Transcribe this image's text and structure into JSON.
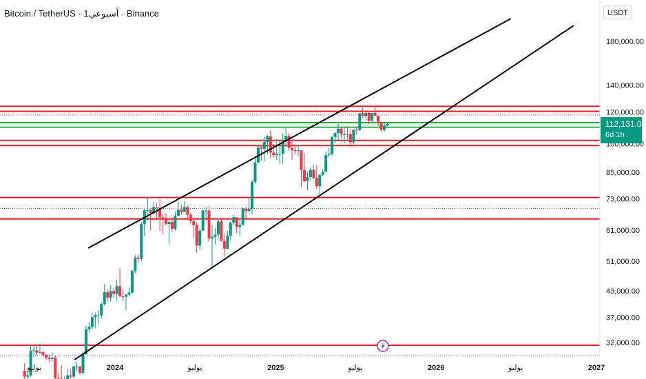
{
  "header": {
    "title": "Bitcoin / TetherUS · 1أسبوعي · Binance",
    "currency": "USDT"
  },
  "price_badge": {
    "price": "112,131.04",
    "countdown": "6d 1h"
  },
  "colors": {
    "up": "#089981",
    "down": "#f23645",
    "channel": "#000000",
    "resistance": "#e0222f",
    "support_zone": "#0b9a2a",
    "marker": "#9c27b0"
  },
  "icons": {
    "event_marker": "lightning-icon"
  },
  "chart_data": {
    "type": "candlestick",
    "scale": "log",
    "y_ticks": [
      {
        "value": 32000,
        "label": "32,000.00"
      },
      {
        "value": 37000,
        "label": "37,000.00"
      },
      {
        "value": 43000,
        "label": "43,000.00"
      },
      {
        "value": 51000,
        "label": "51,000.00"
      },
      {
        "value": 61000,
        "label": "61,000.00"
      },
      {
        "value": 73000,
        "label": "73,000.00"
      },
      {
        "value": 85000,
        "label": "85,000.00"
      },
      {
        "value": 100000,
        "label": "100,000.00"
      },
      {
        "value": 120000,
        "label": "120,000.00"
      },
      {
        "value": 140000,
        "label": "140,000.00"
      },
      {
        "value": 180000,
        "label": "180,000.00"
      }
    ],
    "x_ticks": [
      {
        "date": "2023-07-01",
        "label": "يوليو",
        "bold": false
      },
      {
        "date": "2024-01-01",
        "label": "2024",
        "bold": true
      },
      {
        "date": "2024-07-01",
        "label": "يوليو",
        "bold": false
      },
      {
        "date": "2025-01-01",
        "label": "2025",
        "bold": true
      },
      {
        "date": "2025-07-01",
        "label": "يوليو",
        "bold": false
      },
      {
        "date": "2026-01-01",
        "label": "2026",
        "bold": true
      },
      {
        "date": "2026-07-01",
        "label": "يوليو",
        "bold": false
      },
      {
        "date": "2027-01-01",
        "label": "2027",
        "bold": true
      }
    ],
    "horizontal_levels": [
      {
        "value": 124000,
        "kind": "resistance"
      },
      {
        "value": 120500,
        "kind": "resistance"
      },
      {
        "value": 113000,
        "kind": "support_zone"
      },
      {
        "value": 110000,
        "kind": "support_zone"
      },
      {
        "value": 102000,
        "kind": "resistance"
      },
      {
        "value": 99000,
        "kind": "resistance"
      },
      {
        "value": 73500,
        "kind": "resistance"
      },
      {
        "value": 65000,
        "kind": "resistance"
      },
      {
        "value": 31500,
        "kind": "resistance"
      }
    ],
    "dotted_levels": [
      118000,
      69000,
      29700
    ],
    "channel_lines": [
      {
        "start": {
          "date": "2023-11-01",
          "value": 55000
        },
        "end": {
          "date": "2026-06-20",
          "value": 205000
        }
      },
      {
        "start": {
          "date": "2023-10-01",
          "value": 29000
        },
        "end": {
          "date": "2026-11-10",
          "value": 197000
        }
      }
    ],
    "marker": {
      "date": "2025-08-25"
    },
    "last_price": 112131.04,
    "candles": [
      [
        "2023-06-05",
        27200,
        28400,
        25800,
        26300
      ],
      [
        "2023-06-12",
        26300,
        27000,
        24800,
        26500
      ],
      [
        "2023-06-19",
        26500,
        31400,
        26300,
        30500
      ],
      [
        "2023-06-26",
        30500,
        31300,
        29500,
        30600
      ],
      [
        "2023-07-03",
        30600,
        31500,
        29700,
        30200
      ],
      [
        "2023-07-10",
        30200,
        31800,
        29900,
        30300
      ],
      [
        "2023-07-17",
        30300,
        30400,
        29500,
        29800
      ],
      [
        "2023-07-24",
        29800,
        30000,
        28900,
        29300
      ],
      [
        "2023-07-31",
        29300,
        29900,
        28600,
        29100
      ],
      [
        "2023-08-07",
        29100,
        30200,
        28700,
        29300
      ],
      [
        "2023-08-14",
        29300,
        29700,
        25200,
        26100
      ],
      [
        "2023-08-21",
        26100,
        26800,
        25600,
        26000
      ],
      [
        "2023-08-28",
        26000,
        28100,
        25400,
        25800
      ],
      [
        "2023-09-04",
        25800,
        26400,
        24900,
        25900
      ],
      [
        "2023-09-11",
        25900,
        27500,
        25100,
        26500
      ],
      [
        "2023-09-18",
        26500,
        27500,
        26000,
        26300
      ],
      [
        "2023-09-25",
        26300,
        28000,
        26000,
        27900
      ],
      [
        "2023-10-02",
        27900,
        28600,
        27200,
        27900
      ],
      [
        "2023-10-09",
        27900,
        27900,
        26600,
        26900
      ],
      [
        "2023-10-16",
        26900,
        30400,
        26600,
        29900
      ],
      [
        "2023-10-23",
        29900,
        35200,
        29800,
        34500
      ],
      [
        "2023-10-30",
        34500,
        35900,
        33900,
        35000
      ],
      [
        "2023-11-06",
        35000,
        38000,
        34500,
        37000
      ],
      [
        "2023-11-13",
        37000,
        37900,
        34800,
        37400
      ],
      [
        "2023-11-20",
        37400,
        38400,
        35600,
        37400
      ],
      [
        "2023-11-27",
        37400,
        40200,
        36700,
        39900
      ],
      [
        "2023-12-04",
        39900,
        44700,
        39500,
        42700
      ],
      [
        "2023-12-11",
        42700,
        43400,
        40500,
        41400
      ],
      [
        "2023-12-18",
        41400,
        44400,
        40500,
        43000
      ],
      [
        "2023-12-25",
        43000,
        43800,
        41400,
        42300
      ],
      [
        "2024-01-01",
        42300,
        45900,
        40800,
        44200
      ],
      [
        "2024-01-08",
        44200,
        49000,
        41500,
        41700
      ],
      [
        "2024-01-15",
        41700,
        43500,
        40600,
        41600
      ],
      [
        "2024-01-22",
        41600,
        42200,
        38500,
        42100
      ],
      [
        "2024-01-29",
        42100,
        43900,
        41800,
        42600
      ],
      [
        "2024-02-05",
        42600,
        48600,
        42300,
        48300
      ],
      [
        "2024-02-12",
        48300,
        52800,
        47600,
        52100
      ],
      [
        "2024-02-19",
        52100,
        52900,
        50500,
        51700
      ],
      [
        "2024-02-26",
        51700,
        63900,
        50900,
        63100
      ],
      [
        "2024-03-04",
        63100,
        69000,
        59000,
        68300
      ],
      [
        "2024-03-11",
        68300,
        73800,
        64600,
        68400
      ],
      [
        "2024-03-18",
        68400,
        68900,
        60800,
        67200
      ],
      [
        "2024-03-25",
        67200,
        71800,
        66700,
        69600
      ],
      [
        "2024-04-01",
        69600,
        71300,
        64500,
        69300
      ],
      [
        "2024-04-08",
        69300,
        72800,
        60700,
        65600
      ],
      [
        "2024-04-15",
        65600,
        66800,
        59600,
        64900
      ],
      [
        "2024-04-22",
        64900,
        67200,
        62800,
        63100
      ],
      [
        "2024-04-29",
        63100,
        64700,
        56500,
        63900
      ],
      [
        "2024-05-06",
        63900,
        65500,
        60200,
        61400
      ],
      [
        "2024-05-13",
        61400,
        67700,
        60800,
        66200
      ],
      [
        "2024-05-20",
        66200,
        71900,
        66100,
        68500
      ],
      [
        "2024-05-27",
        68500,
        70600,
        66600,
        67700
      ],
      [
        "2024-06-03",
        67700,
        72000,
        67600,
        69600
      ],
      [
        "2024-06-10",
        69600,
        70200,
        65000,
        66600
      ],
      [
        "2024-06-17",
        66600,
        67200,
        63400,
        64200
      ],
      [
        "2024-06-24",
        64200,
        64500,
        58400,
        62700
      ],
      [
        "2024-07-01",
        62700,
        63800,
        53500,
        55800
      ],
      [
        "2024-07-08",
        55800,
        61300,
        54300,
        60800
      ],
      [
        "2024-07-15",
        60800,
        68400,
        60600,
        68200
      ],
      [
        "2024-07-22",
        68200,
        69400,
        64400,
        68200
      ],
      [
        "2024-07-29",
        68200,
        70000,
        57100,
        58100
      ],
      [
        "2024-08-05",
        58100,
        62700,
        49000,
        58700
      ],
      [
        "2024-08-12",
        58700,
        61800,
        56200,
        59400
      ],
      [
        "2024-08-19",
        59400,
        65000,
        57800,
        64100
      ],
      [
        "2024-08-26",
        64100,
        64900,
        57100,
        57300
      ],
      [
        "2024-09-02",
        57300,
        59800,
        52500,
        54800
      ],
      [
        "2024-09-09",
        54800,
        60700,
        54600,
        59100
      ],
      [
        "2024-09-16",
        59100,
        64100,
        57500,
        63600
      ],
      [
        "2024-09-23",
        63600,
        66500,
        62700,
        65600
      ],
      [
        "2024-09-30",
        65600,
        65600,
        59800,
        62100
      ],
      [
        "2024-10-07",
        62100,
        64500,
        58900,
        62900
      ],
      [
        "2024-10-14",
        62900,
        69400,
        62500,
        69000
      ],
      [
        "2024-10-21",
        69000,
        69500,
        65000,
        68000
      ],
      [
        "2024-10-28",
        68000,
        73600,
        67500,
        68800
      ],
      [
        "2024-11-04",
        68800,
        81500,
        66800,
        80400
      ],
      [
        "2024-11-11",
        80400,
        93400,
        79500,
        89900
      ],
      [
        "2024-11-18",
        89900,
        99600,
        89400,
        97900
      ],
      [
        "2024-11-25",
        97900,
        98700,
        90800,
        97200
      ],
      [
        "2024-12-02",
        97200,
        104000,
        90500,
        101100
      ],
      [
        "2024-12-09",
        101100,
        105000,
        94100,
        104400
      ],
      [
        "2024-12-16",
        104400,
        108300,
        92200,
        95100
      ],
      [
        "2024-12-23",
        95100,
        99900,
        92500,
        93700
      ],
      [
        "2024-12-30",
        93700,
        102700,
        91200,
        94500
      ],
      [
        "2025-01-06",
        94500,
        102300,
        89300,
        94500
      ],
      [
        "2025-01-13",
        94500,
        106300,
        89300,
        101300
      ],
      [
        "2025-01-20",
        101300,
        109600,
        99500,
        104700
      ],
      [
        "2025-01-27",
        104700,
        106500,
        96100,
        97700
      ],
      [
        "2025-02-03",
        97700,
        102500,
        91200,
        96400
      ],
      [
        "2025-02-10",
        96400,
        98800,
        94100,
        96100
      ],
      [
        "2025-02-17",
        96100,
        99500,
        93300,
        96300
      ],
      [
        "2025-02-24",
        96300,
        96500,
        78200,
        86100
      ],
      [
        "2025-03-03",
        86100,
        95000,
        80100,
        80700
      ],
      [
        "2025-03-10",
        80700,
        85300,
        76600,
        82600
      ],
      [
        "2025-03-17",
        82600,
        87400,
        81200,
        86100
      ],
      [
        "2025-03-24",
        86100,
        88800,
        81600,
        82300
      ],
      [
        "2025-03-31",
        82300,
        88500,
        77100,
        78400
      ],
      [
        "2025-04-07",
        78400,
        84000,
        74500,
        83700
      ],
      [
        "2025-04-14",
        83700,
        86500,
        83100,
        85200
      ],
      [
        "2025-04-21",
        85200,
        95800,
        85100,
        93700
      ],
      [
        "2025-04-28",
        93700,
        97900,
        92800,
        94300
      ],
      [
        "2025-05-05",
        94300,
        104300,
        93400,
        104100
      ],
      [
        "2025-05-12",
        104100,
        105800,
        100700,
        106400
      ],
      [
        "2025-05-19",
        106400,
        112000,
        102000,
        109000
      ],
      [
        "2025-05-26",
        109000,
        110400,
        103100,
        105700
      ],
      [
        "2025-06-02",
        105700,
        110400,
        100400,
        105700
      ],
      [
        "2025-06-09",
        105700,
        110600,
        102700,
        105600
      ],
      [
        "2025-06-16",
        105600,
        108900,
        98200,
        100900
      ],
      [
        "2025-06-23",
        100900,
        108500,
        99600,
        108400
      ],
      [
        "2025-06-30",
        108400,
        110500,
        105100,
        108200
      ],
      [
        "2025-07-07",
        108200,
        119400,
        107500,
        119100
      ],
      [
        "2025-07-14",
        119100,
        123200,
        115900,
        117300
      ],
      [
        "2025-07-21",
        117300,
        120200,
        114700,
        119400
      ],
      [
        "2025-07-28",
        119400,
        119800,
        112000,
        114200
      ],
      [
        "2025-08-04",
        114200,
        119300,
        112700,
        119300
      ],
      [
        "2025-08-11",
        119300,
        124400,
        117200,
        117400
      ],
      [
        "2025-08-18",
        117400,
        117600,
        110700,
        113500
      ],
      [
        "2025-08-25",
        113500,
        113500,
        107300,
        108300
      ],
      [
        "2025-09-01",
        108300,
        113400,
        107300,
        111100
      ],
      [
        "2025-09-08",
        111100,
        112500,
        110500,
        112131.04
      ]
    ]
  }
}
